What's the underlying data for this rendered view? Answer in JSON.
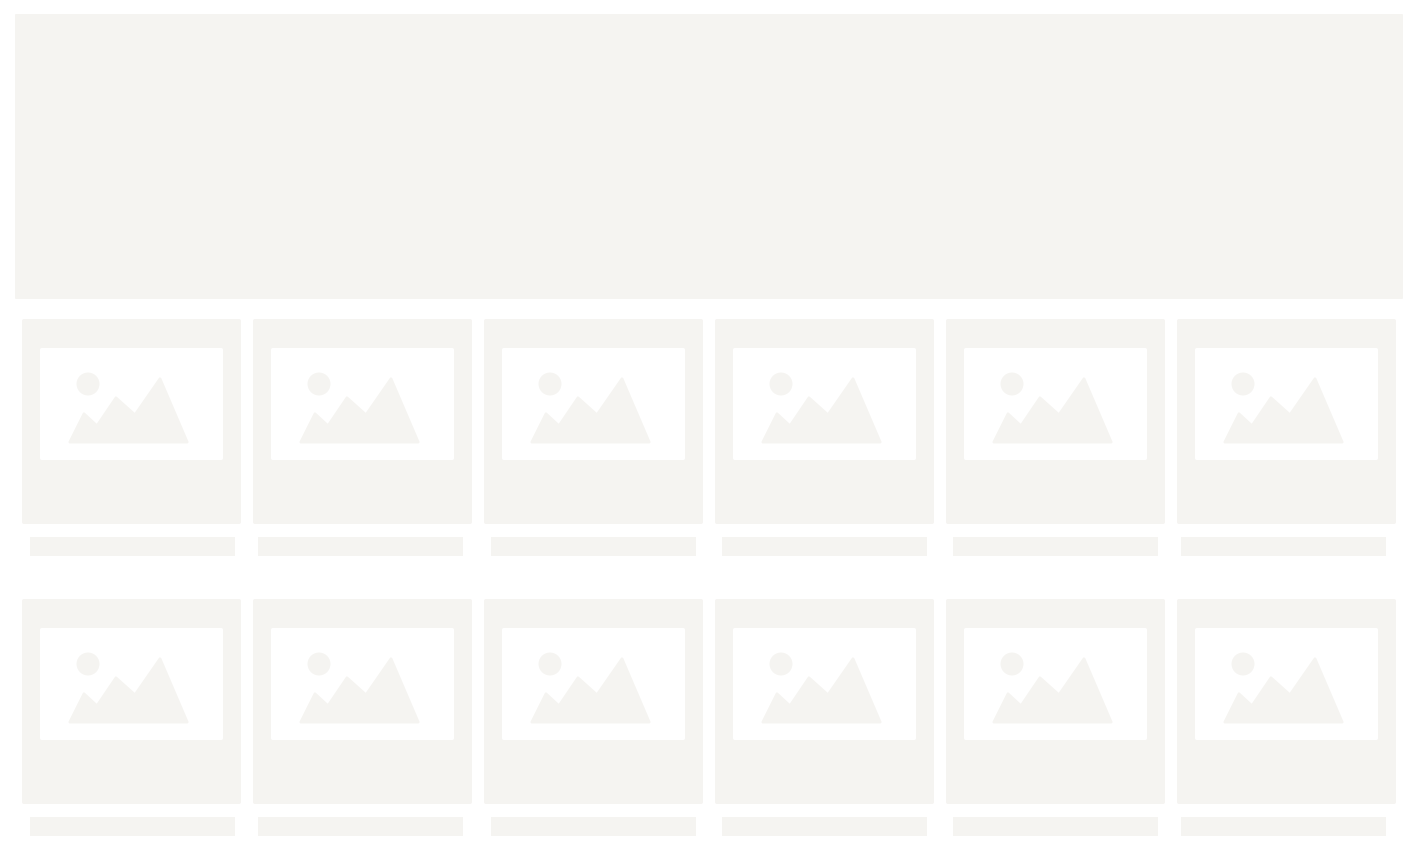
{
  "colors": {
    "placeholder": "#f5f4f1",
    "background": "#ffffff"
  },
  "banner": {
    "state": "loading-placeholder"
  },
  "grid": {
    "rows": 2,
    "columns": 6,
    "items": [
      {
        "icon": "image-placeholder-icon"
      },
      {
        "icon": "image-placeholder-icon"
      },
      {
        "icon": "image-placeholder-icon"
      },
      {
        "icon": "image-placeholder-icon"
      },
      {
        "icon": "image-placeholder-icon"
      },
      {
        "icon": "image-placeholder-icon"
      },
      {
        "icon": "image-placeholder-icon"
      },
      {
        "icon": "image-placeholder-icon"
      },
      {
        "icon": "image-placeholder-icon"
      },
      {
        "icon": "image-placeholder-icon"
      },
      {
        "icon": "image-placeholder-icon"
      },
      {
        "icon": "image-placeholder-icon"
      }
    ]
  }
}
